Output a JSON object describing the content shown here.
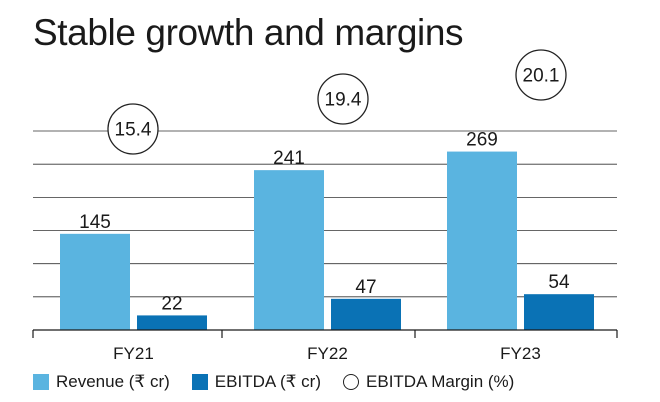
{
  "chart_data": {
    "type": "bar",
    "title": "Stable growth and margins",
    "categories": [
      "FY21",
      "FY22",
      "FY23"
    ],
    "series": [
      {
        "name": "Revenue (₹ cr)",
        "values": [
          145,
          241,
          269
        ],
        "color": "#5ab4e0"
      },
      {
        "name": "EBITDA (₹ cr)",
        "values": [
          22,
          47,
          54
        ],
        "color": "#0a72b5"
      }
    ],
    "margin_series": {
      "name": "EBITDA Margin (%)",
      "values": [
        "15.4",
        "19.4",
        "20.1"
      ]
    },
    "ylim": [
      0,
      300
    ],
    "grid": true,
    "legend": "bottom",
    "xlabel": "",
    "ylabel": ""
  }
}
